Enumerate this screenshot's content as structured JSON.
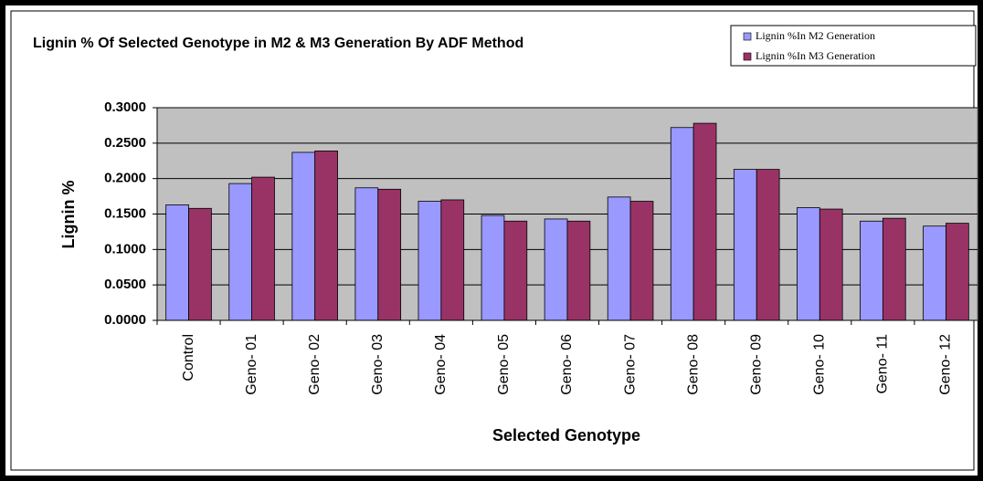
{
  "chart_data": {
    "type": "bar",
    "title": "Lignin % Of Selected Genotype in M2 & M3 Generation By ADF Method",
    "x_label": "Selected Genotype",
    "y_label": "Lignin %",
    "categories": [
      "Control",
      "Geno- 01",
      "Geno- 02",
      "Geno- 03",
      "Geno- 04",
      "Geno- 05",
      "Geno- 06",
      "Geno- 07",
      "Geno- 08",
      "Geno- 09",
      "Geno- 10",
      "Geno- 11",
      "Geno- 12"
    ],
    "series": [
      {
        "name": "Lignin %In M2 Generation",
        "color": "#9999ff",
        "values": [
          0.163,
          0.193,
          0.237,
          0.187,
          0.168,
          0.148,
          0.143,
          0.174,
          0.272,
          0.213,
          0.159,
          0.14,
          0.133
        ]
      },
      {
        "name": "Lignin %In M3 Generation",
        "color": "#993366",
        "values": [
          0.158,
          0.202,
          0.239,
          0.185,
          0.17,
          0.14,
          0.14,
          0.168,
          0.278,
          0.213,
          0.157,
          0.144,
          0.137
        ]
      }
    ],
    "ylim": [
      0,
      0.3
    ],
    "yticks": [
      {
        "value": 0,
        "label": "0.0000"
      },
      {
        "value": 0.05,
        "label": "0.0500"
      },
      {
        "value": 0.1,
        "label": "0.1000"
      },
      {
        "value": 0.15,
        "label": "0.1500"
      },
      {
        "value": 0.2,
        "label": "0.2000"
      },
      {
        "value": 0.25,
        "label": "0.2500"
      },
      {
        "value": 0.3,
        "label": "0.3000"
      }
    ],
    "grid": true,
    "legend": "top-right",
    "plot_background": "#c0c0c0"
  }
}
